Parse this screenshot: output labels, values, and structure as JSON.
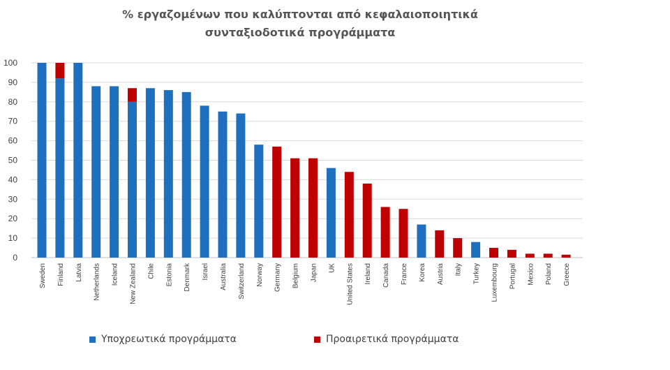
{
  "chart_data": {
    "type": "bar",
    "stacked": true,
    "title": "% εργαζομένων που καλύπτονται από κεφαλαιοποιητικά συνταξιοδοτικά προγράμματα",
    "title_lines": [
      "% εργαζομένων που καλύπτονται από κεφαλαιοποιητικά",
      "συνταξιοδοτικά προγράμματα"
    ],
    "xlabel": "",
    "ylabel": "",
    "ylim": [
      0,
      100
    ],
    "yticks": [
      0,
      10,
      20,
      30,
      40,
      50,
      60,
      70,
      80,
      90,
      100
    ],
    "grid": true,
    "legend_position": "bottom",
    "categories": [
      "Sweden",
      "Finland",
      "Latvia",
      "Netherlands",
      "Iceland",
      "New Zealand",
      "Chile",
      "Estonia",
      "Denmark",
      "Israel",
      "Australia",
      "Switzerland",
      "Norway",
      "Germany",
      "Belgium",
      "Japan",
      "UK",
      "United States",
      "Ireland",
      "Canada",
      "France",
      "Korea",
      "Austria",
      "Italy",
      "Turkey",
      "Luxembourg",
      "Portugal",
      "Mexico",
      "Poland",
      "Greece"
    ],
    "series": [
      {
        "name": "Υποχρεωτικά προγράμματα",
        "color": "#1f6fbf",
        "values": [
          100,
          92,
          100,
          88,
          88,
          80,
          87,
          86,
          85,
          78,
          75,
          74,
          58,
          0,
          0,
          0,
          46,
          0,
          0,
          0,
          0,
          17,
          0,
          0,
          8,
          0,
          0,
          0,
          0,
          0
        ]
      },
      {
        "name": "Προαιρετικά προγράμματα",
        "color": "#c00000",
        "values": [
          0,
          8,
          0,
          0,
          0,
          7,
          0,
          0,
          0,
          0,
          0,
          0,
          0,
          57,
          51,
          51,
          0,
          44,
          38,
          26,
          25,
          0,
          14,
          10,
          0,
          5,
          4,
          2,
          2,
          1.5
        ]
      }
    ]
  }
}
